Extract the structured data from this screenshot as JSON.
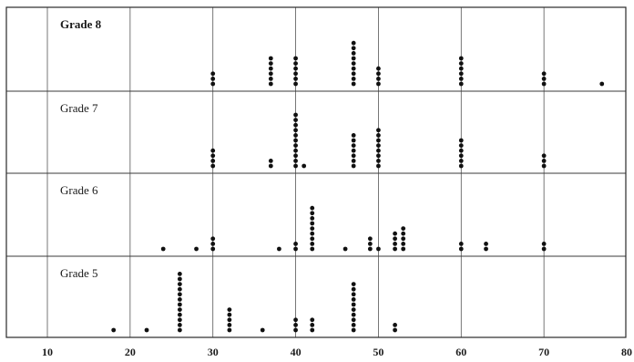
{
  "chart_data": {
    "type": "scatter",
    "style": "dot-plot, stacked dots per value, one panel per grade",
    "xlim": [
      10,
      80
    ],
    "x_ticks": [
      10,
      20,
      30,
      40,
      50,
      60,
      70,
      80
    ],
    "grid": true,
    "panels": [
      {
        "name": "Grade 8",
        "points": [
          {
            "x": 30,
            "count": 3
          },
          {
            "x": 37,
            "count": 6
          },
          {
            "x": 40,
            "count": 6
          },
          {
            "x": 47,
            "count": 9
          },
          {
            "x": 50,
            "count": 4
          },
          {
            "x": 60,
            "count": 6
          },
          {
            "x": 70,
            "count": 3
          },
          {
            "x": 77,
            "count": 1
          }
        ]
      },
      {
        "name": "Grade 7",
        "points": [
          {
            "x": 30,
            "count": 4
          },
          {
            "x": 37,
            "count": 2
          },
          {
            "x": 40,
            "count": 11
          },
          {
            "x": 41,
            "count": 1
          },
          {
            "x": 47,
            "count": 7
          },
          {
            "x": 50,
            "count": 8
          },
          {
            "x": 60,
            "count": 6
          },
          {
            "x": 70,
            "count": 3
          }
        ]
      },
      {
        "name": "Grade 6",
        "points": [
          {
            "x": 24,
            "count": 1
          },
          {
            "x": 28,
            "count": 1
          },
          {
            "x": 30,
            "count": 3
          },
          {
            "x": 38,
            "count": 1
          },
          {
            "x": 40,
            "count": 2
          },
          {
            "x": 42,
            "count": 9
          },
          {
            "x": 46,
            "count": 1
          },
          {
            "x": 49,
            "count": 3
          },
          {
            "x": 50,
            "count": 1
          },
          {
            "x": 52,
            "count": 4
          },
          {
            "x": 53,
            "count": 5
          },
          {
            "x": 60,
            "count": 2
          },
          {
            "x": 63,
            "count": 2
          },
          {
            "x": 70,
            "count": 2
          }
        ]
      },
      {
        "name": "Grade 5",
        "points": [
          {
            "x": 18,
            "count": 1
          },
          {
            "x": 22,
            "count": 1
          },
          {
            "x": 26,
            "count": 12
          },
          {
            "x": 32,
            "count": 5
          },
          {
            "x": 36,
            "count": 1
          },
          {
            "x": 40,
            "count": 3
          },
          {
            "x": 42,
            "count": 3
          },
          {
            "x": 47,
            "count": 10
          },
          {
            "x": 52,
            "count": 2
          }
        ]
      }
    ]
  },
  "colors": {
    "background": "#ffffff",
    "ink": "#111111",
    "grid": "#555555"
  }
}
